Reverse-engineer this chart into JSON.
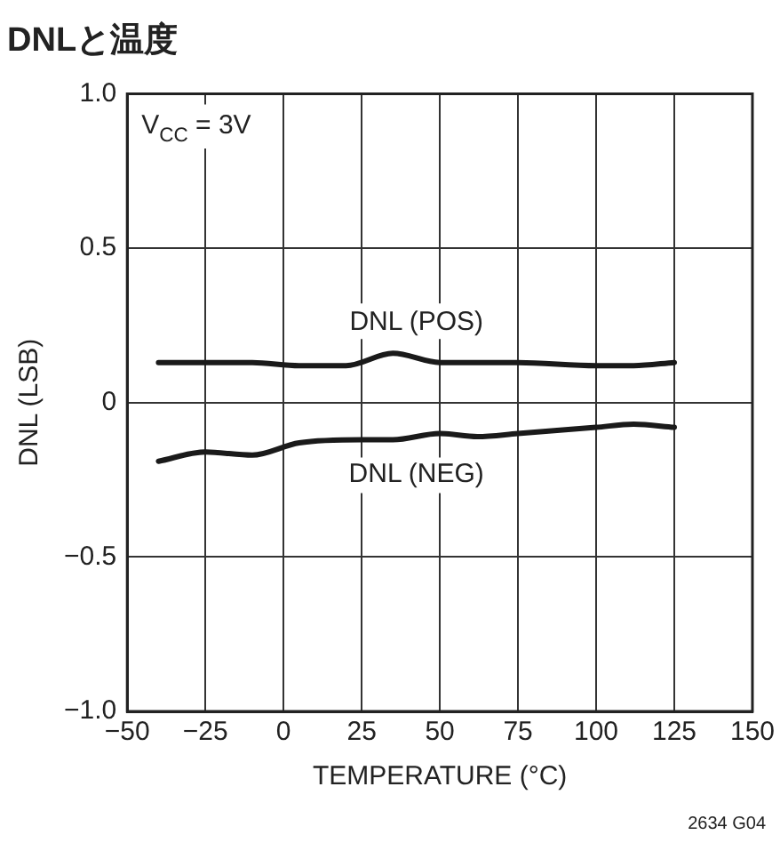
{
  "chart_data": {
    "type": "line",
    "title": "DNLと温度",
    "xlabel": "TEMPERATURE (°C)",
    "ylabel": "DNL (LSB)",
    "annotations": [
      "V$_{CC}$ = 3V",
      "2634 G04"
    ],
    "series": [
      {
        "name": "DNL (POS)",
        "color": "#1a1a1a",
        "x": [
          -40,
          -25,
          -10,
          5,
          20,
          35,
          50,
          75,
          100,
          112,
          125
        ],
        "values": [
          0.13,
          0.13,
          0.13,
          0.12,
          0.12,
          0.16,
          0.13,
          0.13,
          0.12,
          0.12,
          0.13
        ]
      },
      {
        "name": "DNL (NEG)",
        "color": "#1a1a1a",
        "x": [
          -40,
          -25,
          -10,
          5,
          25,
          35,
          50,
          62,
          75,
          100,
          112,
          125
        ],
        "values": [
          -0.19,
          -0.16,
          -0.17,
          -0.13,
          -0.12,
          -0.12,
          -0.1,
          -0.11,
          -0.1,
          -0.08,
          -0.07,
          -0.08
        ]
      }
    ],
    "xlim": [
      -50,
      150
    ],
    "xticks": [
      {
        "value": -50,
        "label": "−50"
      },
      {
        "value": -25,
        "label": "−25"
      },
      0,
      25,
      50,
      75,
      100,
      125,
      150
    ],
    "ylim": [
      -1,
      1
    ],
    "yticks": [
      {
        "value": -1,
        "label": "−1.0"
      },
      {
        "value": -0.5,
        "label": "−0.5"
      },
      0,
      {
        "value": 0.5,
        "label": "0.5"
      },
      {
        "value": 1,
        "label": "1.0"
      }
    ],
    "grid": true,
    "legend": false,
    "marker": "none",
    "line_style": "solid"
  }
}
